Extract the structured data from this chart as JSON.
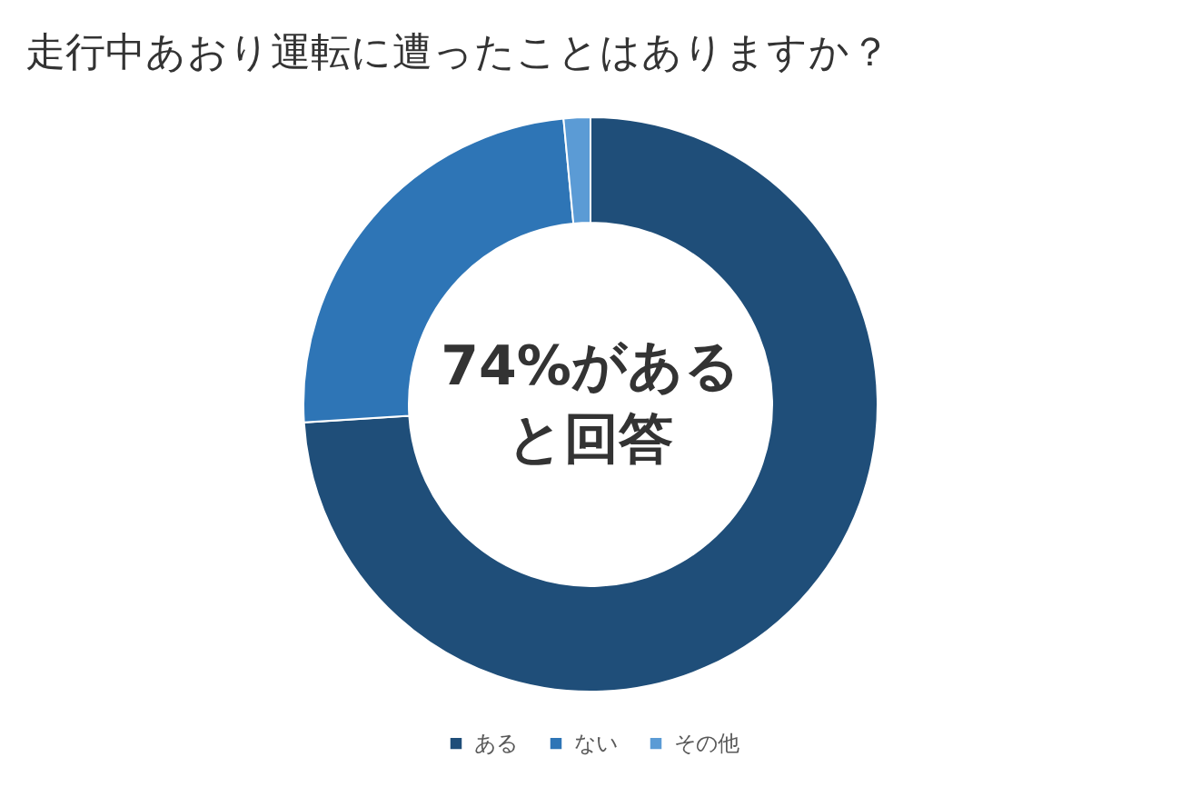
{
  "chart_data": {
    "type": "donut",
    "title": "走行中あおり運転に遭ったことはありますか？",
    "categories": [
      "ある",
      "ない",
      "その他"
    ],
    "values": [
      74,
      24.5,
      1.5
    ],
    "colors": [
      "#1f4e79",
      "#2e75b6",
      "#5b9bd5"
    ],
    "annotations": [
      "74%がある",
      "と回答"
    ],
    "legend": "bottom"
  }
}
